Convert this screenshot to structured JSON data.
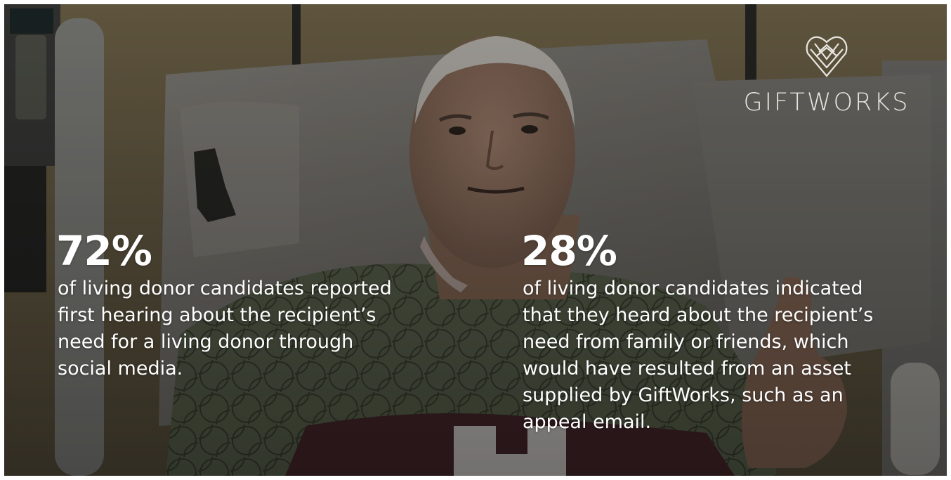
{
  "brand": {
    "name": "GIFTWORKS",
    "logo_icon": "heart-shield-icon"
  },
  "stats": [
    {
      "value": "72%",
      "lines": [
        "of living donor candidates reported",
        "first hearing about the recipient’s",
        "need for a living donor through",
        "social media."
      ]
    },
    {
      "value": "28%",
      "lines": [
        "of living donor candidates indicated",
        "that they heard about the recipient’s",
        "need from family or friends, which",
        "would have resulted from an asset",
        "supplied by GiftWorks, such as an",
        "appeal email."
      ]
    }
  ],
  "photo": {
    "subject": "patient-in-hospital-bed",
    "colors": {
      "wall": "#6e6349",
      "pillow": "#7d7a74",
      "gown": "#5d6650",
      "shirt": "#4a2a2e",
      "skin": "#9a7b66",
      "hair": "#c9c6bf"
    }
  }
}
